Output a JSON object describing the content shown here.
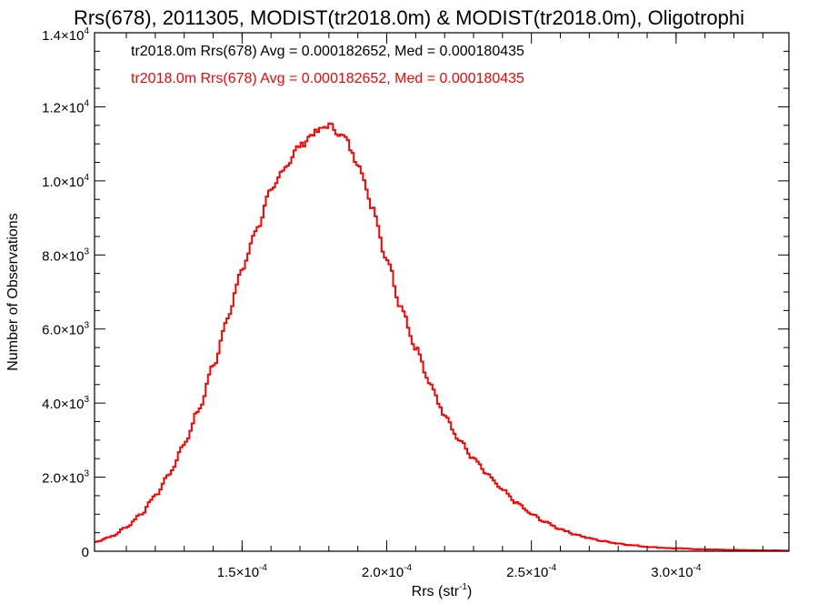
{
  "chart_data": {
    "type": "line",
    "title": "Rrs(678), 2011305, MODIST(tr2018.0m) & MODIST(tr2018.0m), Oligotrophi",
    "xlabel": {
      "base": "Rrs (str",
      "sup": "-1",
      "tail": ")"
    },
    "ylabel": "Number of Observations",
    "xlim": [
      9.9e-05,
      0.000339
    ],
    "ylim": [
      0,
      14000
    ],
    "xticks": [
      {
        "value": 0.00015,
        "mantissa": "1.5×10",
        "exp": "-4"
      },
      {
        "value": 0.0002,
        "mantissa": "2.0×10",
        "exp": "-4"
      },
      {
        "value": 0.00025,
        "mantissa": "2.5×10",
        "exp": "-4"
      },
      {
        "value": 0.0003,
        "mantissa": "3.0×10",
        "exp": "-4"
      }
    ],
    "yticks": [
      {
        "value": 0,
        "mantissa": "0",
        "exp": ""
      },
      {
        "value": 2000,
        "mantissa": "2.0×10",
        "exp": "3"
      },
      {
        "value": 4000,
        "mantissa": "4.0×10",
        "exp": "3"
      },
      {
        "value": 6000,
        "mantissa": "6.0×10",
        "exp": "3"
      },
      {
        "value": 8000,
        "mantissa": "8.0×10",
        "exp": "3"
      },
      {
        "value": 10000,
        "mantissa": "1.0×10",
        "exp": "4"
      },
      {
        "value": 12000,
        "mantissa": "1.2×10",
        "exp": "4"
      },
      {
        "value": 14000,
        "mantissa": "1.4×10",
        "exp": "4"
      }
    ],
    "annotations": [
      {
        "text": "tr2018.0m Rrs(678) Avg = 0.000182652, Med = 0.000180435",
        "color": "#000000"
      },
      {
        "text": "tr2018.0m Rrs(678) Avg = 0.000182652, Med = 0.000180435",
        "color": "#ff0000"
      }
    ],
    "series": [
      {
        "color": "#ff0000",
        "x": [
          9.9e-05,
          0.000105,
          0.00011,
          0.000115,
          0.00012,
          0.000125,
          0.00013,
          0.000135,
          0.00014,
          0.000145,
          0.00015,
          0.000155,
          0.00016,
          0.000165,
          0.00017,
          0.000175,
          0.00018,
          0.000185,
          0.00019,
          0.000195,
          0.0002,
          0.000205,
          0.00021,
          0.000215,
          0.00022,
          0.000225,
          0.00023,
          0.000235,
          0.00024,
          0.000245,
          0.00025,
          0.000255,
          0.00026,
          0.000265,
          0.00027,
          0.000275,
          0.00028,
          0.000285,
          0.00029,
          0.000295,
          0.0003,
          0.00031,
          0.00032,
          0.00033,
          0.000339
        ],
        "y": [
          250,
          400,
          650,
          1000,
          1500,
          2100,
          2900,
          3800,
          5000,
          6300,
          7600,
          8700,
          9700,
          10400,
          10950,
          11300,
          11500,
          11200,
          10500,
          9300,
          7900,
          6600,
          5500,
          4500,
          3700,
          3000,
          2500,
          2050,
          1650,
          1300,
          1000,
          780,
          600,
          460,
          350,
          270,
          210,
          160,
          120,
          95,
          75,
          50,
          35,
          25,
          15
        ]
      }
    ]
  }
}
